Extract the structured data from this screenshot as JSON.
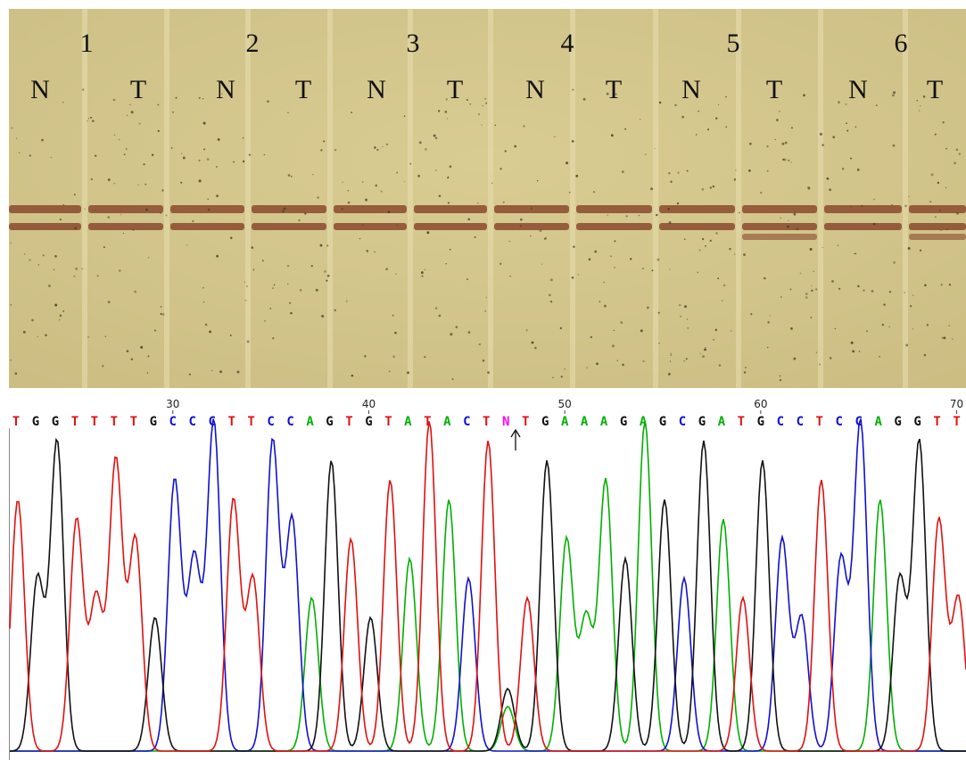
{
  "gel": {
    "lane_numbers": [
      "1",
      "2",
      "3",
      "4",
      "5",
      "6"
    ],
    "lane_labels": [
      "N",
      "T",
      "N",
      "T",
      "N",
      "T",
      "N",
      "T",
      "N",
      "T",
      "N",
      "T"
    ]
  },
  "chromatogram": {
    "ruler": [
      30,
      40,
      50,
      60,
      70
    ],
    "sequence": [
      "T",
      "G",
      "G",
      "T",
      "T",
      "T",
      "T",
      "G",
      "C",
      "C",
      "C",
      "T",
      "T",
      "C",
      "C",
      "A",
      "G",
      "T",
      "G",
      "T",
      "A",
      "T",
      "A",
      "C",
      "T",
      "N",
      "T",
      "G",
      "A",
      "A",
      "A",
      "G",
      "A",
      "G",
      "C",
      "G",
      "A",
      "T",
      "G",
      "C",
      "C",
      "T",
      "C",
      "C",
      "A",
      "G",
      "G",
      "T",
      "T"
    ],
    "base_colors": {
      "A": "#00b000",
      "C": "#1010d0",
      "G": "#111111",
      "T": "#e01010",
      "N": "#ff00ff"
    }
  }
}
